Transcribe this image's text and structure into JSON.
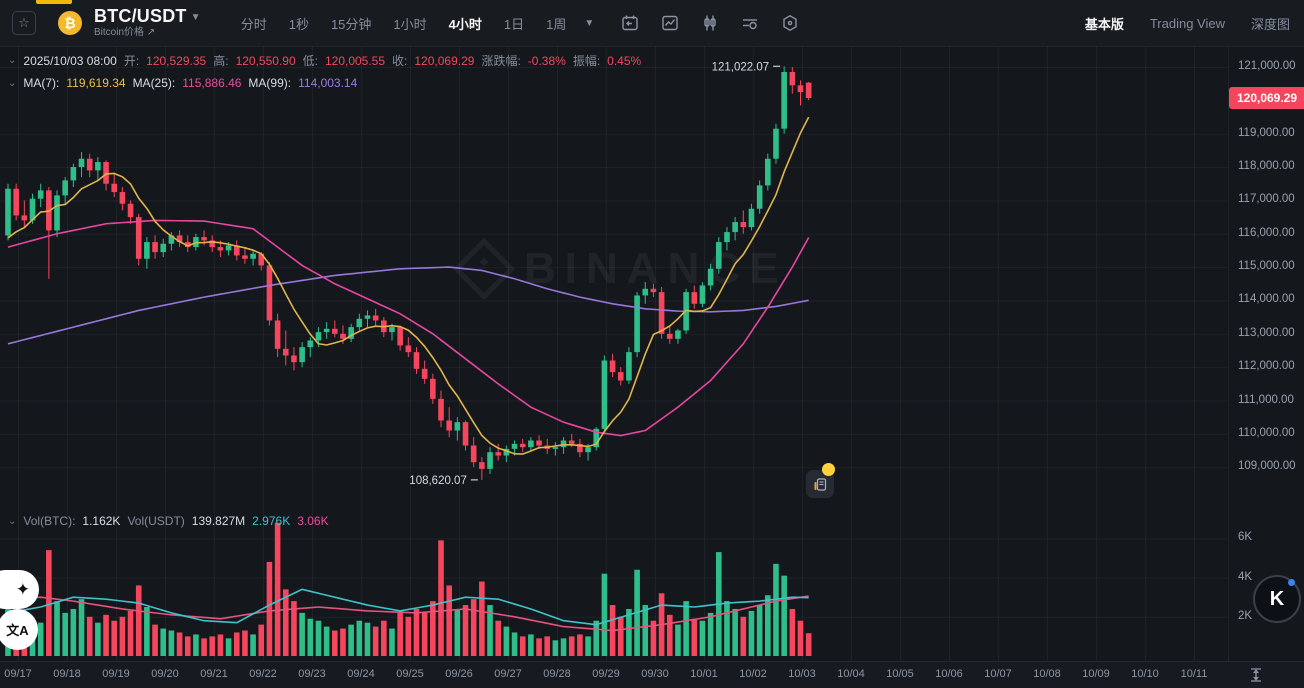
{
  "header": {
    "symbol": "BTC/USDT",
    "subtitle": "Bitcoin价格",
    "subtitle_arrow": "↗",
    "coin_glyph": "₿",
    "star_glyph": "☆",
    "timeframes": [
      "分时",
      "1秒",
      "15分钟",
      "1小时",
      "4小时",
      "1日",
      "1周"
    ],
    "active_timeframe": "4小时",
    "view_tabs": [
      "基本版",
      "Trading View",
      "深度图"
    ],
    "active_view": "基本版"
  },
  "ohlc_row": {
    "time": "2025/10/03 08:00",
    "open_label": "开:",
    "open": "120,529.35",
    "high_label": "高:",
    "high": "120,550.90",
    "low_label": "低:",
    "low": "120,005.55",
    "close_label": "收:",
    "close": "120,069.29",
    "change_label": "涨跌幅:",
    "change": "-0.38%",
    "amplitude_label": "振幅:",
    "amplitude": "0.45%"
  },
  "ma_row": {
    "ma7_label": "MA(7):",
    "ma7": "119,619.34",
    "ma25_label": "MA(25):",
    "ma25": "115,886.46",
    "ma99_label": "MA(99):",
    "ma99": "114,003.14"
  },
  "volume_row": {
    "volbtc_label": "Vol(BTC):",
    "volbtc": "1.162K",
    "volusdt_label": "Vol(USDT)",
    "volusdt": "139.827M",
    "vol_ma_teal": "2.976K",
    "vol_ma_pink": "3.06K"
  },
  "price_axis": {
    "ticks": [
      "121,000.00",
      "119,000.00",
      "118,000.00",
      "117,000.00",
      "116,000.00",
      "115,000.00",
      "114,000.00",
      "113,000.00",
      "112,000.00",
      "111,000.00",
      "110,000.00",
      "109,000.00"
    ],
    "tick_values": [
      121000,
      119000,
      118000,
      117000,
      116000,
      115000,
      114000,
      113000,
      112000,
      111000,
      110000,
      109000
    ],
    "last_price": "120,069.29"
  },
  "volume_axis": {
    "labels": [
      "6K",
      "4K",
      "2K"
    ],
    "values": [
      6,
      4,
      2
    ]
  },
  "annotations": {
    "high": "121,022.07",
    "low": "108,620.07"
  },
  "watermark": "BINANCE",
  "overlays": {
    "k_badge": "K",
    "translate": "文A",
    "sparkle": "✦"
  },
  "colors": {
    "up": "#2fbe8a",
    "down": "#f6465d",
    "ma7": "#e0b54b",
    "ma25": "#e646a0",
    "ma99": "#9877d9",
    "vol_ma_teal": "#3fc2cc",
    "vol_ma_pink": "#e5537e",
    "badge": "#f6465d",
    "accent": "#f0b90b"
  },
  "chart_data": {
    "type": "candlestick+volume",
    "symbol": "BTC/USDT",
    "interval": "4h",
    "title": "BTC/USDT 4小时 K线",
    "y_axis": {
      "min": 108500,
      "max": 121500,
      "gridlines": true
    },
    "x_labels": [
      "09/17",
      "09/18",
      "09/19",
      "09/20",
      "09/21",
      "09/22",
      "09/23",
      "09/24",
      "09/25",
      "09/26",
      "09/27",
      "09/28",
      "09/29",
      "09/30",
      "10/01",
      "10/02",
      "10/03",
      "10/04",
      "10/05",
      "10/06",
      "10/07",
      "10/08",
      "10/09",
      "10/10",
      "10/11"
    ],
    "high_annotation": 121022.07,
    "high_annotation_index": 95,
    "low_annotation": 108620.07,
    "low_annotation_index": 58,
    "current_close": 120069.29,
    "ma7_current": 119619.34,
    "ma25_current": 115886.46,
    "ma99_current": 114003.14,
    "pre_closes": [
      115300,
      115500,
      115400,
      115700,
      115900,
      116000
    ],
    "candles_format": [
      "open",
      "high",
      "low",
      "close",
      "volume_kBTC"
    ],
    "candles": [
      [
        115950,
        117500,
        115800,
        117350,
        2.6
      ],
      [
        117350,
        117500,
        116400,
        116550,
        1.9
      ],
      [
        116550,
        117000,
        116200,
        116400,
        1.6
      ],
      [
        116400,
        117200,
        116300,
        117050,
        1.8
      ],
      [
        117050,
        117500,
        116800,
        117300,
        1.7
      ],
      [
        117300,
        117400,
        114650,
        116100,
        5.4
      ],
      [
        116100,
        117300,
        115900,
        117150,
        2.8
      ],
      [
        117150,
        117700,
        116900,
        117600,
        2.2
      ],
      [
        117600,
        118100,
        117400,
        118000,
        2.4
      ],
      [
        118000,
        118450,
        117700,
        118250,
        2.9
      ],
      [
        118250,
        118400,
        117700,
        117900,
        2.0
      ],
      [
        117900,
        118300,
        117600,
        118150,
        1.7
      ],
      [
        118150,
        118200,
        117300,
        117500,
        2.1
      ],
      [
        117500,
        117800,
        117100,
        117250,
        1.8
      ],
      [
        117250,
        117400,
        116700,
        116900,
        2.0
      ],
      [
        116900,
        117000,
        116300,
        116500,
        2.3
      ],
      [
        116500,
        116600,
        115050,
        115250,
        3.6
      ],
      [
        115250,
        115900,
        114950,
        115750,
        2.5
      ],
      [
        115750,
        115950,
        115250,
        115450,
        1.6
      ],
      [
        115450,
        115850,
        115300,
        115700,
        1.4
      ],
      [
        115700,
        116050,
        115500,
        115950,
        1.3
      ],
      [
        115950,
        116100,
        115600,
        115750,
        1.2
      ],
      [
        115750,
        115950,
        115450,
        115600,
        1.0
      ],
      [
        115600,
        116000,
        115500,
        115900,
        1.1
      ],
      [
        115900,
        116100,
        115650,
        115800,
        0.9
      ],
      [
        115800,
        115950,
        115450,
        115600,
        1.0
      ],
      [
        115600,
        115800,
        115300,
        115500,
        1.1
      ],
      [
        115500,
        115750,
        115350,
        115650,
        0.9
      ],
      [
        115650,
        115800,
        115200,
        115350,
        1.2
      ],
      [
        115350,
        115600,
        115100,
        115250,
        1.3
      ],
      [
        115250,
        115500,
        115050,
        115400,
        1.1
      ],
      [
        115400,
        115450,
        114900,
        115050,
        1.6
      ],
      [
        115050,
        115150,
        113250,
        113400,
        4.8
      ],
      [
        113400,
        113600,
        112300,
        112550,
        6.8
      ],
      [
        112550,
        113100,
        112050,
        112350,
        3.4
      ],
      [
        112350,
        112600,
        111900,
        112150,
        2.8
      ],
      [
        112150,
        112750,
        112000,
        112600,
        2.2
      ],
      [
        112600,
        112900,
        112300,
        112800,
        1.9
      ],
      [
        112800,
        113200,
        112600,
        113050,
        1.8
      ],
      [
        113050,
        113350,
        112850,
        113150,
        1.5
      ],
      [
        113150,
        113400,
        112900,
        113000,
        1.3
      ],
      [
        113000,
        113250,
        112700,
        112850,
        1.4
      ],
      [
        112850,
        113300,
        112750,
        113200,
        1.6
      ],
      [
        113200,
        113600,
        113100,
        113450,
        1.8
      ],
      [
        113450,
        113700,
        113200,
        113550,
        1.7
      ],
      [
        113550,
        113750,
        113250,
        113400,
        1.5
      ],
      [
        113400,
        113500,
        112900,
        113050,
        1.8
      ],
      [
        113050,
        113300,
        112800,
        113200,
        1.4
      ],
      [
        113200,
        113250,
        112500,
        112650,
        2.2
      ],
      [
        112650,
        112900,
        112300,
        112450,
        2.0
      ],
      [
        112450,
        112600,
        111800,
        111950,
        2.4
      ],
      [
        111950,
        112200,
        111500,
        111650,
        2.2
      ],
      [
        111650,
        111800,
        110900,
        111050,
        2.8
      ],
      [
        111050,
        111300,
        110200,
        110400,
        5.9
      ],
      [
        110400,
        110800,
        109900,
        110100,
        3.6
      ],
      [
        110100,
        110500,
        109800,
        110350,
        2.4
      ],
      [
        110350,
        110400,
        109500,
        109650,
        2.6
      ],
      [
        109650,
        109900,
        109000,
        109150,
        2.9
      ],
      [
        109150,
        109300,
        108620.07,
        108950,
        3.8
      ],
      [
        108950,
        109600,
        108800,
        109450,
        2.6
      ],
      [
        109450,
        109700,
        109200,
        109350,
        1.8
      ],
      [
        109350,
        109650,
        109150,
        109550,
        1.5
      ],
      [
        109550,
        109800,
        109350,
        109700,
        1.2
      ],
      [
        109700,
        109850,
        109450,
        109600,
        1.0
      ],
      [
        109600,
        109900,
        109500,
        109800,
        1.1
      ],
      [
        109800,
        109950,
        109550,
        109650,
        0.9
      ],
      [
        109650,
        109850,
        109400,
        109550,
        1.0
      ],
      [
        109550,
        109750,
        109350,
        109600,
        0.8
      ],
      [
        109600,
        109900,
        109400,
        109800,
        0.9
      ],
      [
        109800,
        110000,
        109600,
        109700,
        1.0
      ],
      [
        109700,
        109850,
        109300,
        109450,
        1.1
      ],
      [
        109450,
        109700,
        109200,
        109600,
        1.0
      ],
      [
        109600,
        110200,
        109500,
        110150,
        1.8
      ],
      [
        110150,
        112350,
        110100,
        112200,
        4.2
      ],
      [
        112200,
        112400,
        111700,
        111850,
        2.6
      ],
      [
        111850,
        112000,
        111450,
        111600,
        2.0
      ],
      [
        111600,
        112600,
        111500,
        112450,
        2.4
      ],
      [
        112450,
        114250,
        112300,
        114150,
        4.4
      ],
      [
        114150,
        114550,
        113900,
        114350,
        2.6
      ],
      [
        114350,
        114500,
        114100,
        114250,
        1.8
      ],
      [
        114250,
        114400,
        112850,
        113000,
        3.2
      ],
      [
        113000,
        113250,
        112700,
        112850,
        2.1
      ],
      [
        112850,
        113150,
        112700,
        113100,
        1.6
      ],
      [
        113100,
        114350,
        113000,
        114250,
        2.8
      ],
      [
        114250,
        114450,
        113750,
        113900,
        1.9
      ],
      [
        113900,
        114550,
        113800,
        114450,
        1.8
      ],
      [
        114450,
        115100,
        114300,
        114950,
        2.2
      ],
      [
        114950,
        115900,
        114800,
        115750,
        5.3
      ],
      [
        115750,
        116200,
        115500,
        116050,
        2.8
      ],
      [
        116050,
        116500,
        115800,
        116350,
        2.4
      ],
      [
        116350,
        116700,
        116000,
        116200,
        2.0
      ],
      [
        116200,
        116900,
        116100,
        116750,
        2.3
      ],
      [
        116750,
        117600,
        116600,
        117450,
        2.6
      ],
      [
        117450,
        118400,
        117300,
        118250,
        3.1
      ],
      [
        118250,
        119300,
        118100,
        119150,
        4.7
      ],
      [
        119150,
        121022.07,
        119000,
        120850,
        4.1
      ],
      [
        120850,
        121000,
        120200,
        120450,
        2.4
      ],
      [
        120450,
        120600,
        119850,
        120250,
        1.8
      ],
      [
        120529.35,
        120550.9,
        120005.55,
        120069.29,
        1.162
      ]
    ],
    "ma25_points": [
      [
        0,
        115600
      ],
      [
        6,
        116000
      ],
      [
        12,
        116300
      ],
      [
        18,
        116400
      ],
      [
        24,
        116380
      ],
      [
        30,
        116150
      ],
      [
        33,
        115600
      ],
      [
        36,
        115050
      ],
      [
        40,
        114500
      ],
      [
        44,
        114050
      ],
      [
        48,
        113600
      ],
      [
        52,
        113000
      ],
      [
        56,
        112250
      ],
      [
        60,
        111500
      ],
      [
        64,
        110800
      ],
      [
        68,
        110350
      ],
      [
        72,
        110050
      ],
      [
        75,
        109950
      ],
      [
        78,
        110100
      ],
      [
        82,
        110800
      ],
      [
        86,
        111600
      ],
      [
        90,
        112700
      ],
      [
        93,
        113800
      ],
      [
        96,
        115000
      ],
      [
        98,
        115886.46
      ]
    ],
    "ma99_points": [
      [
        0,
        112700
      ],
      [
        8,
        113200
      ],
      [
        16,
        113700
      ],
      [
        24,
        114100
      ],
      [
        32,
        114450
      ],
      [
        40,
        114750
      ],
      [
        48,
        114950
      ],
      [
        54,
        115000
      ],
      [
        58,
        114900
      ],
      [
        62,
        114650
      ],
      [
        66,
        114350
      ],
      [
        70,
        114100
      ],
      [
        74,
        113900
      ],
      [
        78,
        113750
      ],
      [
        82,
        113680
      ],
      [
        86,
        113660
      ],
      [
        90,
        113700
      ],
      [
        94,
        113820
      ],
      [
        98,
        114003.14
      ]
    ],
    "vol_ma_teal_points": [
      [
        0,
        2.2
      ],
      [
        4,
        2.5
      ],
      [
        8,
        3.0
      ],
      [
        12,
        2.9
      ],
      [
        16,
        2.7
      ],
      [
        20,
        2.2
      ],
      [
        24,
        1.8
      ],
      [
        28,
        1.7
      ],
      [
        32,
        2.6
      ],
      [
        36,
        3.4
      ],
      [
        40,
        3.0
      ],
      [
        44,
        2.6
      ],
      [
        48,
        2.3
      ],
      [
        52,
        2.6
      ],
      [
        56,
        3.0
      ],
      [
        60,
        2.9
      ],
      [
        64,
        2.4
      ],
      [
        68,
        1.8
      ],
      [
        72,
        1.6
      ],
      [
        76,
        2.1
      ],
      [
        80,
        2.6
      ],
      [
        84,
        2.5
      ],
      [
        88,
        2.7
      ],
      [
        92,
        2.8
      ],
      [
        96,
        3.0
      ],
      [
        98,
        2.976
      ]
    ],
    "vol_ma_pink_points": [
      [
        0,
        2.9
      ],
      [
        4,
        3.0
      ],
      [
        8,
        2.8
      ],
      [
        14,
        2.4
      ],
      [
        20,
        2.1
      ],
      [
        26,
        1.9
      ],
      [
        32,
        2.3
      ],
      [
        38,
        2.5
      ],
      [
        44,
        2.3
      ],
      [
        50,
        2.2
      ],
      [
        56,
        2.4
      ],
      [
        62,
        2.0
      ],
      [
        68,
        1.5
      ],
      [
        74,
        1.3
      ],
      [
        80,
        1.6
      ],
      [
        86,
        2.0
      ],
      [
        90,
        2.4
      ],
      [
        94,
        2.8
      ],
      [
        98,
        3.06
      ]
    ]
  }
}
